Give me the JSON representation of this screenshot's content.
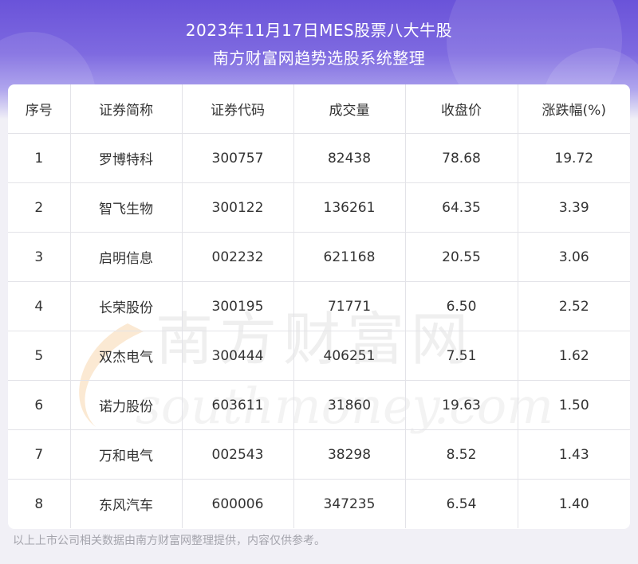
{
  "header": {
    "title_line1": "2023年11月17日MES股票八大牛股",
    "title_line2": "南方财富网趋势选股系统整理"
  },
  "table": {
    "columns": [
      "序号",
      "证券简称",
      "证券代码",
      "成交量",
      "收盘价",
      "涨跌幅(%)"
    ],
    "rows": [
      [
        "1",
        "罗博特科",
        "300757",
        "82438",
        "78.68",
        "19.72"
      ],
      [
        "2",
        "智飞生物",
        "300122",
        "136261",
        "64.35",
        "3.39"
      ],
      [
        "3",
        "启明信息",
        "002232",
        "621168",
        "20.55",
        "3.06"
      ],
      [
        "4",
        "长荣股份",
        "300195",
        "71771",
        "6.50",
        "2.52"
      ],
      [
        "5",
        "双杰电气",
        "300444",
        "406251",
        "7.51",
        "1.62"
      ],
      [
        "6",
        "诺力股份",
        "603611",
        "31860",
        "19.63",
        "1.50"
      ],
      [
        "7",
        "万和电气",
        "002543",
        "38298",
        "8.52",
        "1.43"
      ],
      [
        "8",
        "东风汽车",
        "600006",
        "347235",
        "6.54",
        "1.40"
      ]
    ]
  },
  "watermark": {
    "text_cn": "南方财富网",
    "text_en": "southmoney.com"
  },
  "footer": {
    "note": "以上上市公司相关数据由南方财富网整理提供，内容仅供参考。"
  },
  "colors": {
    "header_gradient_top": "#6a53d9",
    "text": "#333333",
    "watermark": "#eeeeee"
  }
}
